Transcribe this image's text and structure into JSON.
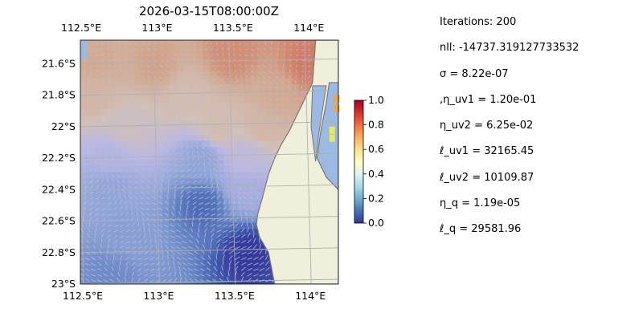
{
  "colors": {
    "ocean": "#9bb9e3",
    "land": "#efefdc",
    "coast": "#777777",
    "grid": "#b0b0b0",
    "arrow": "#a9c4e6",
    "colormap": "RdYlBu_r"
  },
  "icons": [
    "map-icon",
    "colorbar-icon"
  ],
  "chart_data": {
    "type": "heatmap",
    "title": "2026-03-15T08:00:00Z",
    "xlabel": "",
    "ylabel": "",
    "xlim": [
      112.5,
      114.2
    ],
    "ylim": [
      -23.0,
      -21.45
    ],
    "x_ticks": [
      112.5,
      113.0,
      113.5,
      114.0
    ],
    "x_tick_labels": [
      "112.5°E",
      "113°E",
      "113.5°E",
      "114°E"
    ],
    "y_ticks": [
      -21.6,
      -21.8,
      -22.0,
      -22.2,
      -22.4,
      -22.6,
      -22.8,
      -23.0
    ],
    "y_tick_labels": [
      "21.6°S",
      "21.8°S",
      "22°S",
      "22.2°S",
      "22.4°S",
      "22.6°S",
      "22.8°S",
      "23°S"
    ],
    "x_tick_labels_top": true,
    "x_tick_labels_bottom": true,
    "grid": true,
    "overlay": "quiver vector field (light blue arrows)",
    "colorbar": {
      "range": [
        0.0,
        1.0
      ],
      "ticks": [
        0.0,
        0.2,
        0.4,
        0.6,
        0.8,
        1.0
      ],
      "tick_labels": [
        "0.0",
        "0.2",
        "0.4",
        "0.6",
        "0.8",
        "1.0"
      ]
    },
    "field_samples": [
      {
        "lon": 112.6,
        "lat": -21.6,
        "value": 0.6
      },
      {
        "lon": 113.0,
        "lat": -21.6,
        "value": 0.62
      },
      {
        "lon": 113.5,
        "lat": -21.55,
        "value": 0.68
      },
      {
        "lon": 114.0,
        "lat": -21.6,
        "value": 0.72
      },
      {
        "lon": 112.6,
        "lat": -21.8,
        "value": 0.55
      },
      {
        "lon": 113.2,
        "lat": -21.8,
        "value": 0.52
      },
      {
        "lon": 113.8,
        "lat": -21.8,
        "value": 0.6
      },
      {
        "lon": 112.8,
        "lat": -22.0,
        "value": 0.48
      },
      {
        "lon": 113.4,
        "lat": -22.0,
        "value": 0.52
      },
      {
        "lon": 113.7,
        "lat": -22.0,
        "value": 0.55
      },
      {
        "lon": 112.7,
        "lat": -22.2,
        "value": 0.38
      },
      {
        "lon": 113.3,
        "lat": -22.2,
        "value": 0.3
      },
      {
        "lon": 113.6,
        "lat": -22.2,
        "value": 0.42
      },
      {
        "lon": 112.7,
        "lat": -22.4,
        "value": 0.3
      },
      {
        "lon": 113.3,
        "lat": -22.5,
        "value": 0.14
      },
      {
        "lon": 113.6,
        "lat": -22.4,
        "value": 0.35
      },
      {
        "lon": 112.8,
        "lat": -22.7,
        "value": 0.28
      },
      {
        "lon": 113.6,
        "lat": -22.8,
        "value": 0.02
      },
      {
        "lon": 112.7,
        "lat": -22.95,
        "value": 0.22
      }
    ]
  },
  "stats": [
    "Iterations: 200",
    "nll: -14737.319127733532",
    "σ = 8.22e-07",
    ",η_uv1 = 1.20e-01",
    "η_uv2 = 6.25e-02",
    "ℓ_uv1 = 32165.45",
    "ℓ_uv2 = 10109.87",
    "η_q = 1.19e-05",
    "ℓ_q = 29581.96"
  ]
}
